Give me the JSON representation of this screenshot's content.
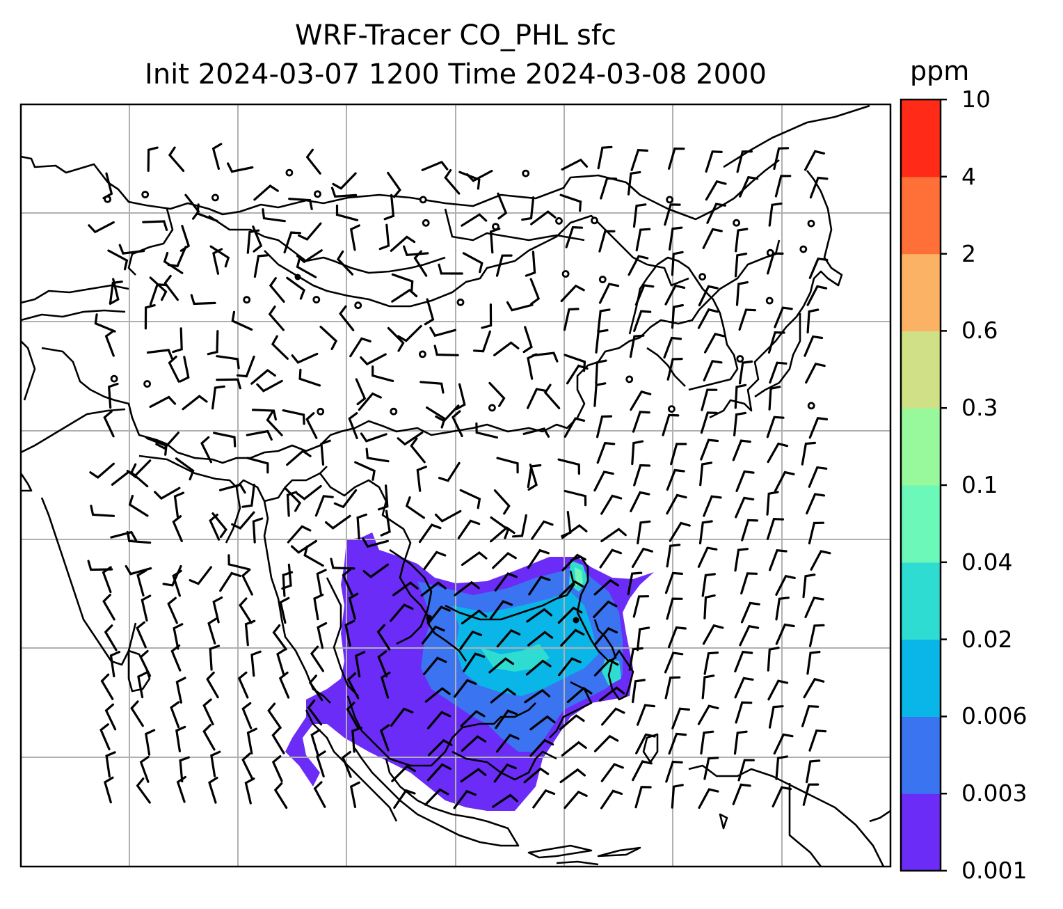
{
  "title": {
    "line1": "WRF-Tracer CO_PHL sfc",
    "line2": "Init 2024-03-07 1200 Time 2024-03-08 2000"
  },
  "colorbar": {
    "unit": "ppm",
    "levels": [
      "0.001",
      "0.003",
      "0.006",
      "0.02",
      "0.04",
      "0.1",
      "0.3",
      "0.6",
      "2",
      "4",
      "10"
    ],
    "colors": [
      "#6a2cf6",
      "#3a74f0",
      "#0ab5e8",
      "#2fdcd2",
      "#6cf8b8",
      "#98f89c",
      "#cfe086",
      "#fbb264",
      "#ff7038",
      "#ff2a18"
    ]
  },
  "map": {
    "projection": "lat-lon",
    "gridlines": true,
    "wind_barbs": true,
    "calm_circles": true,
    "overlay": "coastlines"
  }
}
